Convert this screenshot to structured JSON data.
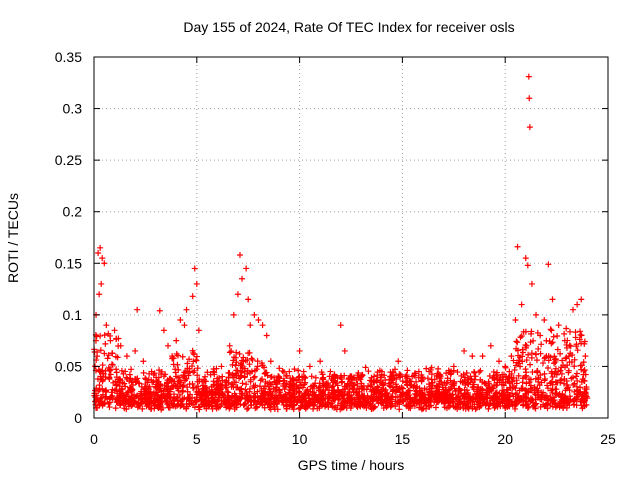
{
  "chart_data": {
    "type": "scatter",
    "title": "Day 155 of 2024, Rate Of TEC Index for receiver osls",
    "xlabel": "GPS time / hours",
    "ylabel": "ROTI / TECUs",
    "xlim": [
      0,
      25
    ],
    "ylim": [
      0,
      0.35
    ],
    "x_ticks": [
      0,
      5,
      10,
      15,
      20,
      25
    ],
    "x_tick_labels": [
      "0",
      "5",
      "10",
      "15",
      "20",
      "25"
    ],
    "y_ticks": [
      0,
      0.05,
      0.1,
      0.15,
      0.2,
      0.25,
      0.3,
      0.35
    ],
    "y_tick_labels": [
      "0",
      "0.05",
      "0.1",
      "0.15",
      "0.2",
      "0.25",
      "0.3",
      "0.35"
    ],
    "grid": true,
    "marker": "+",
    "series_color": "#ff0000",
    "series": [
      {
        "name": "ROTI",
        "points": [
          [
            0.2,
            0.16
          ],
          [
            0.3,
            0.165
          ],
          [
            0.4,
            0.155
          ],
          [
            0.5,
            0.15
          ],
          [
            0.35,
            0.13
          ],
          [
            0.25,
            0.12
          ],
          [
            0.1,
            0.1
          ],
          [
            0.15,
            0.06
          ],
          [
            0.6,
            0.09
          ],
          [
            0.8,
            0.075
          ],
          [
            1.0,
            0.085
          ],
          [
            1.3,
            0.07
          ],
          [
            1.6,
            0.06
          ],
          [
            2.0,
            0.065
          ],
          [
            2.1,
            0.105
          ],
          [
            2.4,
            0.055
          ],
          [
            2.8,
            0.045
          ],
          [
            3.2,
            0.104
          ],
          [
            3.4,
            0.085
          ],
          [
            3.6,
            0.07
          ],
          [
            3.8,
            0.06
          ],
          [
            4.0,
            0.075
          ],
          [
            4.2,
            0.095
          ],
          [
            4.4,
            0.09
          ],
          [
            4.5,
            0.105
          ],
          [
            4.8,
            0.118
          ],
          [
            4.9,
            0.145
          ],
          [
            5.0,
            0.13
          ],
          [
            5.1,
            0.085
          ],
          [
            5.4,
            0.04
          ],
          [
            5.8,
            0.045
          ],
          [
            6.2,
            0.05
          ],
          [
            6.6,
            0.07
          ],
          [
            6.8,
            0.1
          ],
          [
            7.0,
            0.12
          ],
          [
            7.1,
            0.158
          ],
          [
            7.2,
            0.135
          ],
          [
            7.4,
            0.145
          ],
          [
            7.5,
            0.115
          ],
          [
            7.6,
            0.09
          ],
          [
            7.8,
            0.1
          ],
          [
            8.0,
            0.095
          ],
          [
            8.2,
            0.09
          ],
          [
            8.4,
            0.08
          ],
          [
            8.6,
            0.055
          ],
          [
            9.0,
            0.04
          ],
          [
            9.5,
            0.045
          ],
          [
            10.0,
            0.065
          ],
          [
            10.2,
            0.045
          ],
          [
            10.5,
            0.05
          ],
          [
            11.0,
            0.055
          ],
          [
            11.5,
            0.045
          ],
          [
            12.0,
            0.09
          ],
          [
            12.2,
            0.065
          ],
          [
            12.5,
            0.04
          ],
          [
            13.0,
            0.04
          ],
          [
            13.5,
            0.035
          ],
          [
            14.0,
            0.045
          ],
          [
            14.4,
            0.04
          ],
          [
            14.8,
            0.055
          ],
          [
            15.2,
            0.04
          ],
          [
            15.8,
            0.045
          ],
          [
            16.3,
            0.045
          ],
          [
            16.8,
            0.04
          ],
          [
            17.5,
            0.05
          ],
          [
            18.0,
            0.065
          ],
          [
            18.4,
            0.06
          ],
          [
            18.9,
            0.06
          ],
          [
            19.3,
            0.07
          ],
          [
            19.7,
            0.055
          ],
          [
            20.0,
            0.05
          ],
          [
            20.3,
            0.06
          ],
          [
            20.5,
            0.095
          ],
          [
            20.6,
            0.166
          ],
          [
            20.8,
            0.11
          ],
          [
            21.0,
            0.155
          ],
          [
            21.1,
            0.148
          ],
          [
            21.15,
            0.331
          ],
          [
            21.17,
            0.31
          ],
          [
            21.2,
            0.282
          ],
          [
            21.3,
            0.13
          ],
          [
            21.5,
            0.1
          ],
          [
            21.7,
            0.08
          ],
          [
            21.9,
            0.095
          ],
          [
            22.1,
            0.149
          ],
          [
            22.3,
            0.115
          ],
          [
            22.6,
            0.09
          ],
          [
            22.9,
            0.075
          ],
          [
            23.1,
            0.06
          ],
          [
            23.3,
            0.105
          ],
          [
            23.5,
            0.11
          ],
          [
            23.7,
            0.115
          ],
          [
            23.9,
            0.06
          ],
          [
            23.95,
            0.03
          ]
        ]
      }
    ]
  }
}
